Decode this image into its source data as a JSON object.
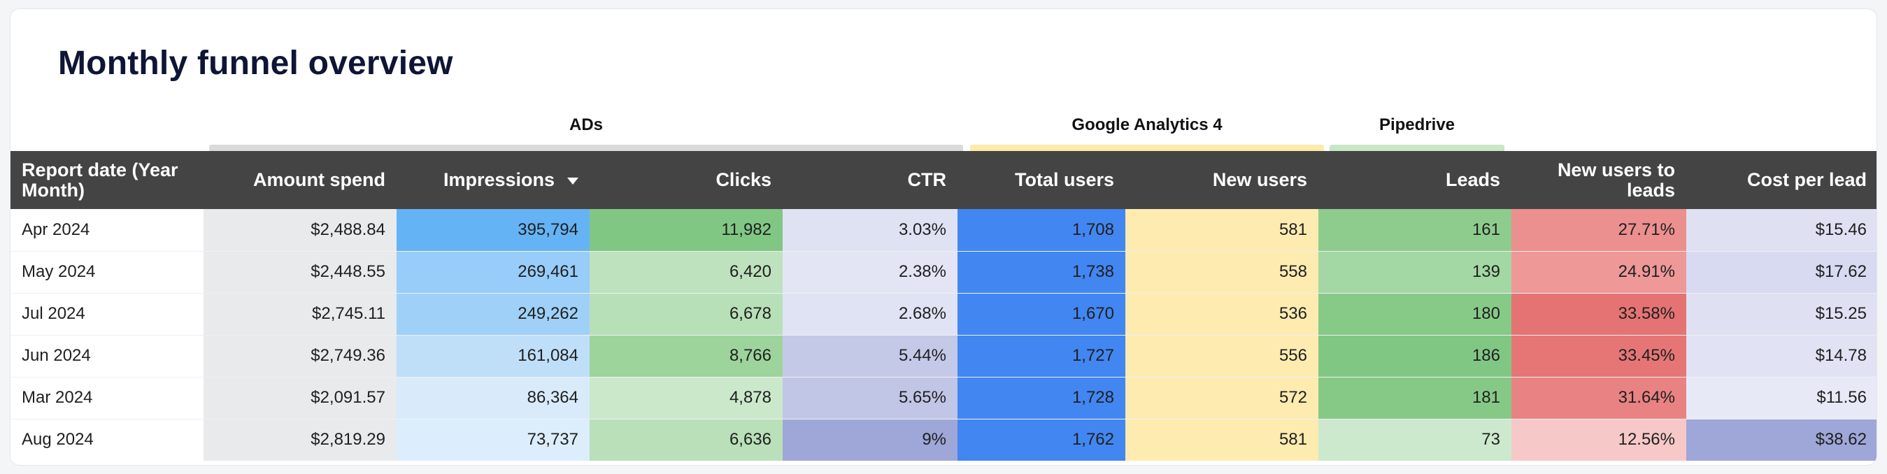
{
  "title": "Monthly funnel overview",
  "groups": [
    {
      "label": "ADs",
      "bar_color": "#dadada"
    },
    {
      "label": "Google Analytics 4",
      "bar_color": "#fcebaa"
    },
    {
      "label": "Pipedrive",
      "bar_color": "#c9e7c6"
    }
  ],
  "columns": [
    "Report date (Year Month)",
    "Amount spend",
    "Impressions",
    "Clicks",
    "CTR",
    "Total users",
    "New users",
    "Leads",
    "New users to leads",
    "Cost per lead"
  ],
  "sort": {
    "column": "Impressions",
    "direction": "descending"
  },
  "rows": [
    {
      "date": "Apr 2024",
      "amount": "$2,488.84",
      "impressions": "395,794",
      "clicks": "11,982",
      "ctr": "3.03%",
      "total_users": "1,708",
      "new_users": "581",
      "leads": "161",
      "nu_to_leads": "27.71%",
      "cpl": "$15.46"
    },
    {
      "date": "May 2024",
      "amount": "$2,448.55",
      "impressions": "269,461",
      "clicks": "6,420",
      "ctr": "2.38%",
      "total_users": "1,738",
      "new_users": "558",
      "leads": "139",
      "nu_to_leads": "24.91%",
      "cpl": "$17.62"
    },
    {
      "date": "Jul 2024",
      "amount": "$2,745.11",
      "impressions": "249,262",
      "clicks": "6,678",
      "ctr": "2.68%",
      "total_users": "1,670",
      "new_users": "536",
      "leads": "180",
      "nu_to_leads": "33.58%",
      "cpl": "$15.25"
    },
    {
      "date": "Jun 2024",
      "amount": "$2,749.36",
      "impressions": "161,084",
      "clicks": "8,766",
      "ctr": "5.44%",
      "total_users": "1,727",
      "new_users": "556",
      "leads": "186",
      "nu_to_leads": "33.45%",
      "cpl": "$14.78"
    },
    {
      "date": "Mar 2024",
      "amount": "$2,091.57",
      "impressions": "86,364",
      "clicks": "4,878",
      "ctr": "5.65%",
      "total_users": "1,728",
      "new_users": "572",
      "leads": "181",
      "nu_to_leads": "31.64%",
      "cpl": "$11.56"
    },
    {
      "date": "Aug 2024",
      "amount": "$2,819.29",
      "impressions": "73,737",
      "clicks": "6,636",
      "ctr": "9%",
      "total_users": "1,762",
      "new_users": "581",
      "leads": "73",
      "nu_to_leads": "12.56%",
      "cpl": "$38.62"
    }
  ],
  "cell_colors": [
    {
      "amount": "#e8eaec",
      "impressions": "#64b3f5",
      "clicks": "#81c784",
      "ctr": "#dfe2f3",
      "total_users": "#4286f1",
      "new_users": "#fdebb0",
      "leads": "#8dcc8d",
      "nu_to_leads": "#ec8f8f",
      "cpl": "#dfe1f3"
    },
    {
      "amount": "#e8eaec",
      "impressions": "#97cdf8",
      "clicks": "#bde2bd",
      "ctr": "#e3e5f5",
      "total_users": "#4286f1",
      "new_users": "#fdebb0",
      "leads": "#a3d7a3",
      "nu_to_leads": "#ee9898",
      "cpl": "#d7daf1"
    },
    {
      "amount": "#e8eaec",
      "impressions": "#9fd1f8",
      "clicks": "#b8e0b8",
      "ctr": "#e0e3f4",
      "total_users": "#4286f1",
      "new_users": "#fdebb0",
      "leads": "#87ca87",
      "nu_to_leads": "#e57373",
      "cpl": "#dfe1f3"
    },
    {
      "amount": "#e8eaec",
      "impressions": "#bfdff9",
      "clicks": "#9cd49c",
      "ctr": "#c4c9e8",
      "total_users": "#4286f1",
      "new_users": "#fdebb0",
      "leads": "#81c784",
      "nu_to_leads": "#e67676",
      "cpl": "#e1e3f4"
    },
    {
      "amount": "#e8eaec",
      "impressions": "#d9ebfb",
      "clicks": "#cbe8cb",
      "ctr": "#c1c6e7",
      "total_users": "#4286f1",
      "new_users": "#fdebb0",
      "leads": "#86c986",
      "nu_to_leads": "#e98282",
      "cpl": "#e7e9f6"
    },
    {
      "amount": "#e8eaec",
      "impressions": "#dcedfb",
      "clicks": "#b9e0b9",
      "ctr": "#9fa6d8",
      "total_users": "#4286f1",
      "new_users": "#fdebb0",
      "leads": "#cde9cd",
      "nu_to_leads": "#f7c8c8",
      "cpl": "#9fa6d8"
    }
  ]
}
